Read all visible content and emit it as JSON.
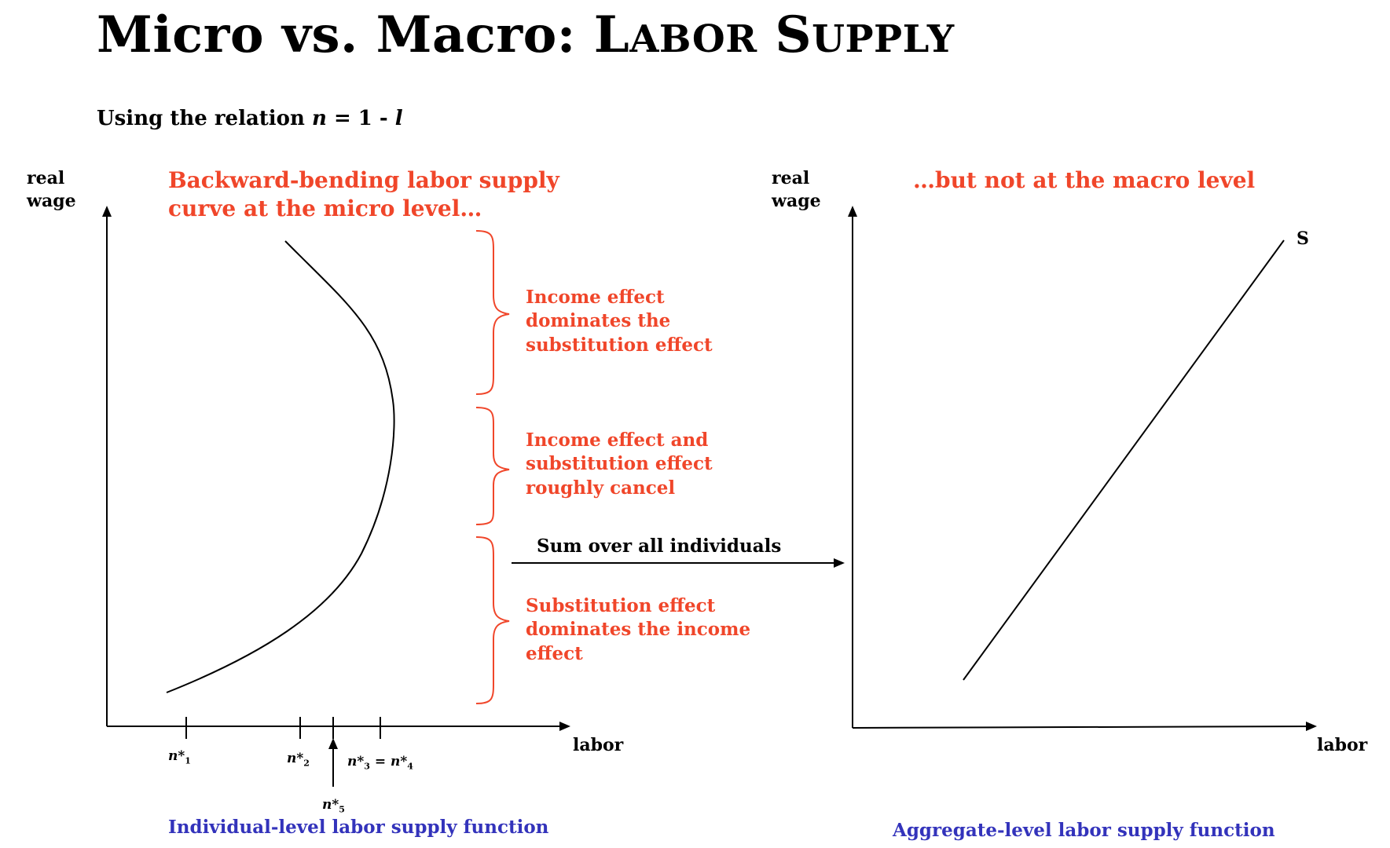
{
  "title": {
    "part1": "Micro vs. Macro: ",
    "L": "L",
    "abor": "ABOR",
    "S": "S",
    "upply": "UPPLY"
  },
  "subtitle": {
    "prefix": "Using the relation ",
    "formula_n": "n",
    "formula_mid": " = 1 - ",
    "formula_l": "l"
  },
  "left_panel": {
    "y_axis_label_line1": "real",
    "y_axis_label_line2": "wage",
    "x_axis_label": "labor",
    "heading_line1": "Backward-bending labor supply",
    "heading_line2": "curve at the micro level…",
    "brace_top": [
      "Income effect",
      "dominates the",
      "substitution effect"
    ],
    "brace_mid": [
      "Income effect and",
      "substitution effect",
      "roughly cancel"
    ],
    "brace_bot": [
      "Substitution effect",
      "dominates the income",
      "effect"
    ],
    "ticks": {
      "n1": "n*",
      "n1_sub": "1",
      "n2": "n*",
      "n2_sub": "2",
      "n34_a": "n*",
      "n34_a_sub": "3",
      "n34_eq": " = ",
      "n34_b": "n*",
      "n34_b_sub": "4",
      "n5": "n*",
      "n5_sub": "5"
    },
    "caption": "Individual-level labor supply function"
  },
  "arrow_label": "Sum over all individuals",
  "right_panel": {
    "y_axis_label_line1": "real",
    "y_axis_label_line2": "wage",
    "x_axis_label": "labor",
    "heading": "…but not at the macro level",
    "curve_label": "S",
    "caption": "Aggregate-level labor supply function"
  },
  "colors": {
    "accent_red": "#f0462a",
    "caption_blue": "#3333bb",
    "ink": "#000000"
  }
}
